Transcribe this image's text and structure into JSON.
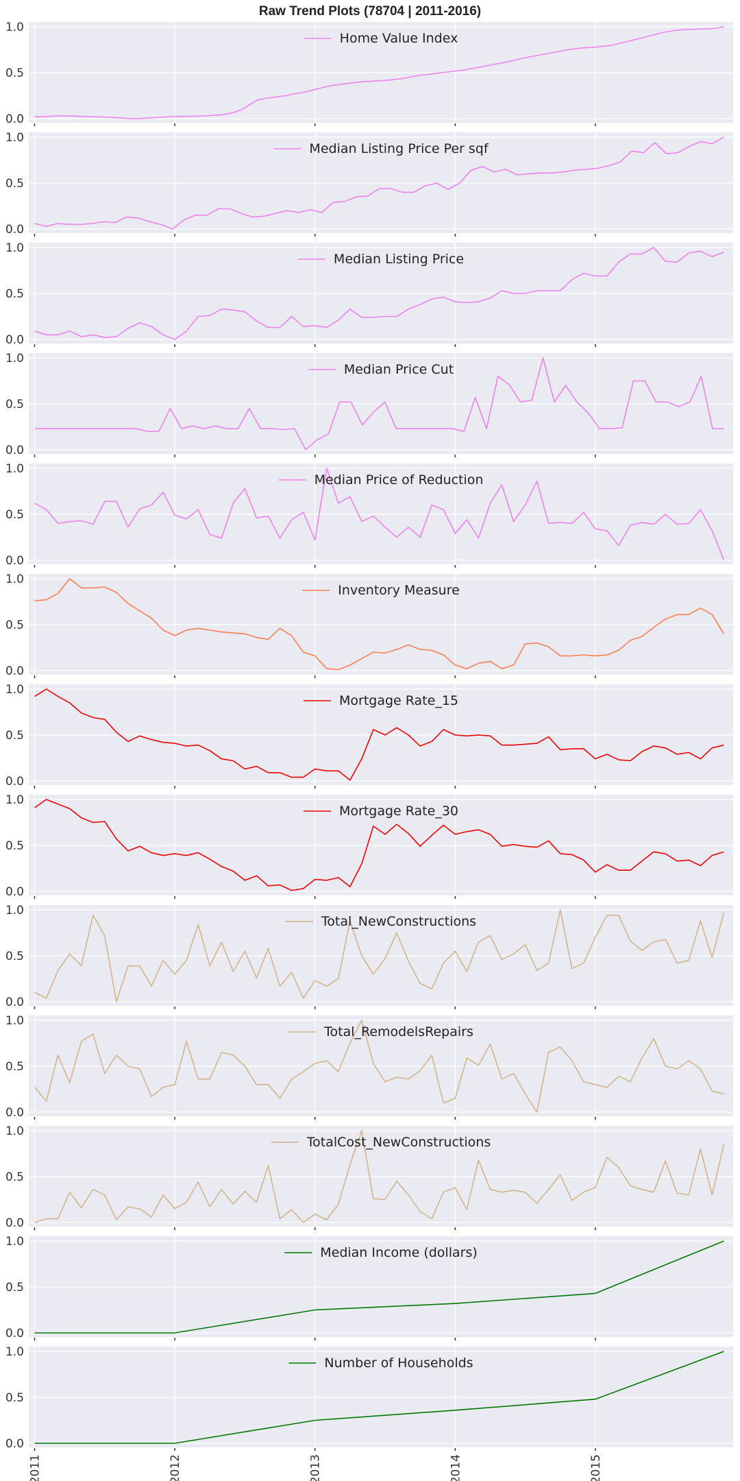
{
  "figure": {
    "title": "Raw Trend Plots (78704 | 2011-2016)"
  },
  "chart_data": {
    "type": "line",
    "title": "Raw Trend Plots (78704 | 2011-2016)",
    "xlabel": "",
    "x_tick_labels": [
      "2011",
      "2012",
      "2013",
      "2014",
      "2015"
    ],
    "x_range": [
      "2011-01",
      "2015-12"
    ],
    "ylim": [
      0,
      1
    ],
    "y_tick_labels": [
      "0.0",
      "0.5",
      "1.0"
    ],
    "grid": true,
    "legend_placement": "upper center",
    "subplots": [
      {
        "name": "Home Value Index",
        "color": "#ee82ee",
        "values": [
          0.02,
          0.02,
          0.025,
          0.03,
          0.03,
          0.028,
          0.025,
          0.022,
          0.02,
          0.018,
          0.015,
          0.01,
          0.005,
          0.0,
          0.0,
          0.005,
          0.01,
          0.015,
          0.02,
          0.022,
          0.025,
          0.025,
          0.027,
          0.03,
          0.035,
          0.04,
          0.05,
          0.07,
          0.1,
          0.15,
          0.2,
          0.22,
          0.23,
          0.24,
          0.25,
          0.27,
          0.28,
          0.3,
          0.32,
          0.34,
          0.36,
          0.37,
          0.38,
          0.39,
          0.4,
          0.405,
          0.41,
          0.415,
          0.42,
          0.43,
          0.44,
          0.46,
          0.47,
          0.48,
          0.49,
          0.5,
          0.51,
          0.52,
          0.53,
          0.545,
          0.56,
          0.575,
          0.59,
          0.605,
          0.62,
          0.64,
          0.66,
          0.675,
          0.69,
          0.705,
          0.72,
          0.735,
          0.75,
          0.76,
          0.77,
          0.775,
          0.78,
          0.79,
          0.8,
          0.82,
          0.84,
          0.86,
          0.88,
          0.9,
          0.92,
          0.94,
          0.955,
          0.965,
          0.97,
          0.972,
          0.975,
          0.978,
          0.985,
          1.0
        ]
      },
      {
        "name": "Median Listing Price Per sqf",
        "color": "#ee82ee",
        "values": [
          0.06,
          0.03,
          0.06,
          0.05,
          0.05,
          0.06,
          0.08,
          0.07,
          0.13,
          0.12,
          0.08,
          0.05,
          0.0,
          0.1,
          0.15,
          0.15,
          0.22,
          0.22,
          0.17,
          0.13,
          0.14,
          0.17,
          0.2,
          0.18,
          0.21,
          0.18,
          0.29,
          0.3,
          0.35,
          0.36,
          0.44,
          0.44,
          0.4,
          0.4,
          0.47,
          0.5,
          0.43,
          0.5,
          0.64,
          0.68,
          0.62,
          0.65,
          0.59,
          0.6,
          0.61,
          0.61,
          0.62,
          0.64,
          0.65,
          0.66,
          0.69,
          0.73,
          0.85,
          0.83,
          0.94,
          0.82,
          0.83,
          0.9,
          0.95,
          0.93,
          1.0
        ]
      },
      {
        "name": "Median Listing Price",
        "color": "#ee82ee",
        "values": [
          0.09,
          0.05,
          0.05,
          0.09,
          0.03,
          0.05,
          0.02,
          0.03,
          0.12,
          0.18,
          0.14,
          0.05,
          0.0,
          0.09,
          0.25,
          0.26,
          0.33,
          0.32,
          0.3,
          0.2,
          0.13,
          0.13,
          0.25,
          0.14,
          0.15,
          0.13,
          0.21,
          0.33,
          0.24,
          0.24,
          0.25,
          0.25,
          0.33,
          0.38,
          0.44,
          0.46,
          0.41,
          0.4,
          0.41,
          0.45,
          0.53,
          0.5,
          0.5,
          0.53,
          0.53,
          0.53,
          0.65,
          0.72,
          0.69,
          0.69,
          0.84,
          0.93,
          0.93,
          1.0,
          0.85,
          0.84,
          0.94,
          0.96,
          0.9,
          0.95
        ]
      },
      {
        "name": "Median Price Cut",
        "color": "#ee82ee",
        "values": [
          0.23,
          0.23,
          0.23,
          0.23,
          0.23,
          0.23,
          0.23,
          0.23,
          0.23,
          0.23,
          0.2,
          0.2,
          0.45,
          0.23,
          0.26,
          0.23,
          0.26,
          0.23,
          0.23,
          0.45,
          0.23,
          0.23,
          0.22,
          0.23,
          0.0,
          0.11,
          0.17,
          0.52,
          0.52,
          0.27,
          0.41,
          0.52,
          0.23,
          0.23,
          0.23,
          0.23,
          0.23,
          0.23,
          0.2,
          0.57,
          0.23,
          0.8,
          0.71,
          0.52,
          0.54,
          1.0,
          0.52,
          0.7,
          0.52,
          0.4,
          0.23,
          0.23,
          0.24,
          0.75,
          0.75,
          0.52,
          0.52,
          0.47,
          0.52,
          0.8,
          0.23,
          0.23
        ]
      },
      {
        "name": "Median Price of Reduction",
        "color": "#ee82ee",
        "values": [
          0.62,
          0.55,
          0.4,
          0.42,
          0.43,
          0.39,
          0.64,
          0.64,
          0.36,
          0.56,
          0.6,
          0.74,
          0.49,
          0.45,
          0.55,
          0.28,
          0.24,
          0.62,
          0.78,
          0.46,
          0.48,
          0.24,
          0.44,
          0.52,
          0.22,
          1.0,
          0.62,
          0.69,
          0.42,
          0.48,
          0.36,
          0.25,
          0.36,
          0.25,
          0.6,
          0.55,
          0.29,
          0.44,
          0.24,
          0.62,
          0.82,
          0.42,
          0.6,
          0.86,
          0.4,
          0.41,
          0.4,
          0.52,
          0.34,
          0.32,
          0.16,
          0.38,
          0.41,
          0.39,
          0.5,
          0.39,
          0.4,
          0.55,
          0.32,
          0.0
        ]
      },
      {
        "name": "Inventory Measure",
        "color": "#ff7f50",
        "values": [
          0.76,
          0.77,
          0.84,
          1.0,
          0.9,
          0.9,
          0.91,
          0.85,
          0.73,
          0.65,
          0.57,
          0.44,
          0.38,
          0.44,
          0.46,
          0.44,
          0.42,
          0.41,
          0.4,
          0.36,
          0.34,
          0.46,
          0.38,
          0.2,
          0.16,
          0.02,
          0.01,
          0.06,
          0.13,
          0.2,
          0.19,
          0.23,
          0.28,
          0.23,
          0.22,
          0.17,
          0.06,
          0.02,
          0.08,
          0.1,
          0.02,
          0.06,
          0.29,
          0.3,
          0.26,
          0.16,
          0.16,
          0.17,
          0.16,
          0.17,
          0.22,
          0.33,
          0.37,
          0.47,
          0.56,
          0.61,
          0.61,
          0.68,
          0.61,
          0.4
        ]
      },
      {
        "name": "Mortgage Rate_15",
        "color": "#ee0000",
        "values": [
          0.92,
          1.0,
          0.92,
          0.85,
          0.74,
          0.69,
          0.67,
          0.53,
          0.43,
          0.49,
          0.45,
          0.42,
          0.41,
          0.38,
          0.39,
          0.33,
          0.24,
          0.22,
          0.13,
          0.16,
          0.09,
          0.09,
          0.04,
          0.04,
          0.13,
          0.11,
          0.11,
          0.01,
          0.24,
          0.56,
          0.5,
          0.58,
          0.5,
          0.38,
          0.43,
          0.56,
          0.5,
          0.49,
          0.5,
          0.49,
          0.39,
          0.39,
          0.4,
          0.41,
          0.48,
          0.34,
          0.35,
          0.35,
          0.24,
          0.29,
          0.23,
          0.22,
          0.32,
          0.38,
          0.36,
          0.29,
          0.31,
          0.24,
          0.36,
          0.39
        ]
      },
      {
        "name": "Mortgage Rate_30",
        "color": "#ee0000",
        "values": [
          0.91,
          1.0,
          0.95,
          0.9,
          0.8,
          0.75,
          0.76,
          0.57,
          0.44,
          0.49,
          0.42,
          0.39,
          0.41,
          0.39,
          0.42,
          0.35,
          0.27,
          0.22,
          0.12,
          0.17,
          0.06,
          0.07,
          0.01,
          0.03,
          0.13,
          0.12,
          0.15,
          0.05,
          0.3,
          0.71,
          0.62,
          0.73,
          0.63,
          0.49,
          0.61,
          0.72,
          0.62,
          0.65,
          0.67,
          0.62,
          0.49,
          0.51,
          0.49,
          0.48,
          0.55,
          0.41,
          0.4,
          0.34,
          0.21,
          0.29,
          0.23,
          0.23,
          0.33,
          0.43,
          0.41,
          0.33,
          0.34,
          0.28,
          0.39,
          0.43
        ]
      },
      {
        "name": "Total_NewConstructions",
        "color": "#d2b48c",
        "values": [
          0.1,
          0.04,
          0.34,
          0.52,
          0.39,
          0.94,
          0.72,
          0.0,
          0.39,
          0.39,
          0.17,
          0.45,
          0.3,
          0.45,
          0.84,
          0.39,
          0.65,
          0.33,
          0.55,
          0.26,
          0.58,
          0.17,
          0.32,
          0.04,
          0.23,
          0.17,
          0.25,
          0.88,
          0.5,
          0.3,
          0.47,
          0.75,
          0.44,
          0.2,
          0.14,
          0.42,
          0.55,
          0.33,
          0.65,
          0.72,
          0.46,
          0.52,
          0.62,
          0.34,
          0.42,
          1.0,
          0.36,
          0.42,
          0.7,
          0.94,
          0.94,
          0.66,
          0.56,
          0.65,
          0.68,
          0.42,
          0.45,
          0.88,
          0.48,
          0.97
        ]
      },
      {
        "name": "Total_RemodelsRepairs",
        "color": "#d2b48c",
        "values": [
          0.27,
          0.12,
          0.62,
          0.32,
          0.77,
          0.85,
          0.42,
          0.62,
          0.5,
          0.47,
          0.17,
          0.27,
          0.3,
          0.77,
          0.36,
          0.36,
          0.65,
          0.62,
          0.5,
          0.3,
          0.3,
          0.15,
          0.36,
          0.44,
          0.53,
          0.56,
          0.44,
          0.75,
          1.0,
          0.53,
          0.33,
          0.38,
          0.36,
          0.45,
          0.62,
          0.1,
          0.15,
          0.59,
          0.51,
          0.74,
          0.36,
          0.42,
          0.2,
          0.0,
          0.65,
          0.71,
          0.56,
          0.33,
          0.3,
          0.27,
          0.39,
          0.33,
          0.59,
          0.8,
          0.5,
          0.47,
          0.56,
          0.47,
          0.23,
          0.2
        ]
      },
      {
        "name": "TotalCost_NewConstructions",
        "color": "#d2b48c",
        "values": [
          0.0,
          0.04,
          0.04,
          0.33,
          0.16,
          0.36,
          0.3,
          0.03,
          0.17,
          0.15,
          0.06,
          0.3,
          0.15,
          0.22,
          0.44,
          0.17,
          0.36,
          0.2,
          0.34,
          0.22,
          0.62,
          0.04,
          0.14,
          0.0,
          0.09,
          0.03,
          0.2,
          0.63,
          1.0,
          0.26,
          0.25,
          0.45,
          0.3,
          0.12,
          0.04,
          0.33,
          0.38,
          0.14,
          0.68,
          0.36,
          0.33,
          0.35,
          0.33,
          0.21,
          0.36,
          0.52,
          0.24,
          0.33,
          0.38,
          0.71,
          0.6,
          0.4,
          0.36,
          0.33,
          0.67,
          0.32,
          0.3,
          0.8,
          0.3,
          0.85
        ]
      },
      {
        "name": "Median Income (dollars)",
        "color": "#007700",
        "points": [
          [
            0,
            0.0
          ],
          [
            12,
            0.0
          ],
          [
            24,
            0.25
          ],
          [
            36,
            0.32
          ],
          [
            48,
            0.43
          ],
          [
            59,
            1.0
          ]
        ]
      },
      {
        "name": "Number of Households",
        "color": "#007700",
        "points": [
          [
            0,
            0.0
          ],
          [
            12,
            0.0
          ],
          [
            24,
            0.25
          ],
          [
            36,
            0.36
          ],
          [
            48,
            0.48
          ],
          [
            59,
            1.0
          ]
        ]
      }
    ]
  }
}
